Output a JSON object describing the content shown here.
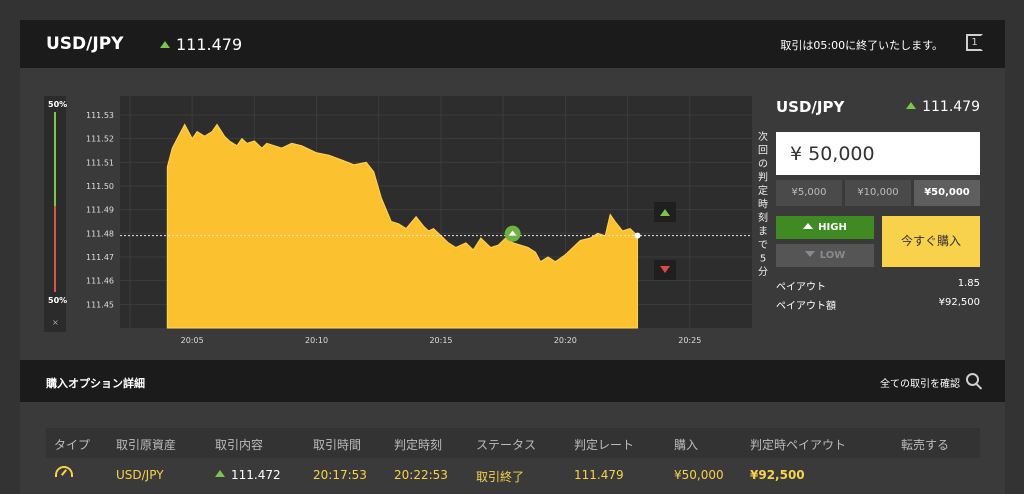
{
  "header": {
    "pair": "USD/JPY",
    "price": "111.479",
    "notice": "取引は05:00に終了いたします。",
    "icon_label": "1"
  },
  "gauge": {
    "top_label": "50%",
    "bottom_label": "50%",
    "close": "×"
  },
  "chart_data": {
    "type": "area",
    "title": "",
    "xlabel": "",
    "ylabel": "",
    "y_ticks": [
      "111.53",
      "111.52",
      "111.51",
      "111.50",
      "111.49",
      "111.48",
      "111.47",
      "111.46",
      "111.45"
    ],
    "x_ticks": [
      "20:05",
      "20:10",
      "20:15",
      "20:20",
      "20:25"
    ],
    "ylim": [
      111.44,
      111.538
    ],
    "current_rate": 111.479,
    "entry_marker": {
      "time_min": 17.88,
      "rate": 111.479
    },
    "deadline_label": "次回の判定時刻まで5分",
    "series": [
      {
        "color": "#fcc12e",
        "x": [
          4.0,
          4.2,
          4.5,
          4.7,
          5.0,
          5.2,
          5.5,
          5.8,
          6.0,
          6.3,
          6.5,
          6.8,
          7.0,
          7.2,
          7.5,
          7.8,
          8.0,
          8.3,
          8.6,
          9.0,
          9.4,
          9.8,
          10.0,
          10.5,
          11.0,
          11.5,
          12.0,
          12.3,
          12.6,
          13.0,
          13.3,
          13.6,
          14.0,
          14.3,
          14.5,
          14.7,
          15.0,
          15.3,
          15.6,
          16.0,
          16.3,
          16.6,
          17.0,
          17.3,
          17.6,
          17.9,
          18.2,
          18.5,
          18.8,
          19.0,
          19.3,
          19.6,
          20.0,
          20.3,
          20.6,
          21.0,
          21.3,
          21.6,
          21.8,
          22.0,
          22.3,
          22.6,
          22.9
        ],
        "y": [
          111.508,
          111.516,
          111.522,
          111.526,
          111.52,
          111.523,
          111.521,
          111.523,
          111.526,
          111.521,
          111.519,
          111.517,
          111.52,
          111.518,
          111.519,
          111.516,
          111.518,
          111.517,
          111.516,
          111.518,
          111.517,
          111.515,
          111.514,
          111.513,
          111.511,
          111.509,
          111.51,
          111.506,
          111.495,
          111.485,
          111.484,
          111.482,
          111.487,
          111.483,
          111.481,
          111.482,
          111.479,
          111.476,
          111.474,
          111.476,
          111.473,
          111.478,
          111.474,
          111.475,
          111.478,
          111.476,
          111.475,
          111.474,
          111.472,
          111.468,
          111.47,
          111.468,
          111.471,
          111.474,
          111.477,
          111.478,
          111.48,
          111.479,
          111.488,
          111.485,
          111.481,
          111.482,
          111.479
        ]
      }
    ],
    "grid": true
  },
  "side": {
    "pair": "USD/JPY",
    "price": "111.479",
    "amount": "¥ 50,000",
    "presets": [
      "¥5,000",
      "¥10,000",
      "¥50,000"
    ],
    "high_label": "HIGH",
    "low_label": "LOW",
    "buy_label": "今すぐ購入",
    "payout_label": "ペイアウト",
    "payout_value": "1.85",
    "payout_amount_label": "ペイアウト額",
    "payout_amount_value": "¥92,500"
  },
  "options": {
    "title": "購入オプション詳細",
    "link": "全ての取引を確認",
    "columns": [
      "タイプ",
      "取引原資産",
      "取引内容",
      "取引時間",
      "判定時刻",
      "ステータス",
      "判定レート",
      "購入",
      "判定時ペイアウト",
      "転売する"
    ],
    "row": {
      "asset": "USD/JPY",
      "content": "111.472",
      "time": "20:17:53",
      "judge_time": "20:22:53",
      "status": "取引終了",
      "rate": "111.479",
      "purchase": "¥50,000",
      "payout": "¥92,500"
    }
  }
}
